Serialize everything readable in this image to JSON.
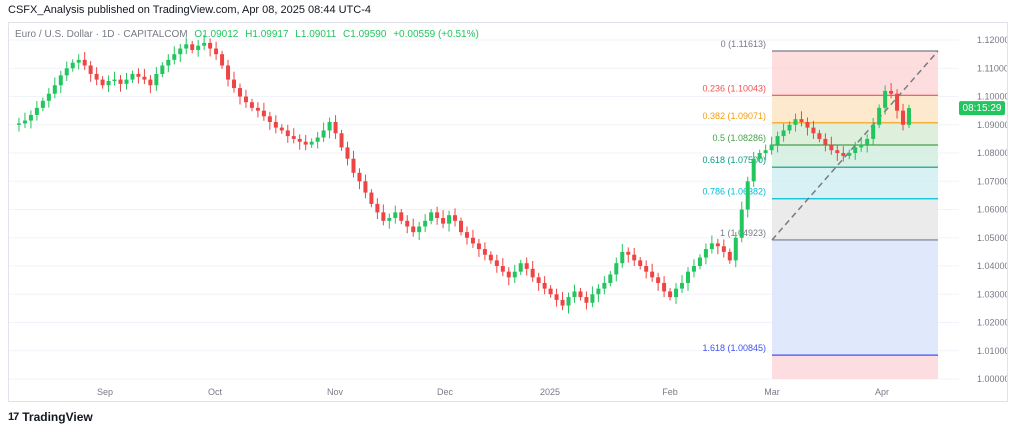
{
  "header": {
    "publisher": "CSFX_Analysis published on TradingView.com, Apr 08, 2025 08:44 UTC-4"
  },
  "footer": {
    "brand": "TradingView",
    "logo_glyph": "17"
  },
  "colors": {
    "up": "#22c55e",
    "down": "#ef4444",
    "grid": "#f0f3fa",
    "axis_text": "#787b86",
    "price_tag": "#22c55e"
  },
  "chart_data": {
    "type": "candlestick",
    "symbol_line": {
      "symbol": "Euro / U.S. Dollar · 1D · CAPITALCOM",
      "open": "O1.09012",
      "high": "H1.09917",
      "low": "L1.09011",
      "close": "C1.09590",
      "change": "+0.00559 (+0.51%)"
    },
    "x_labels": [
      "Sep",
      "Oct",
      "Nov",
      "Dec",
      "2025",
      "Feb",
      "Mar",
      "Apr"
    ],
    "y_ticks": [
      "1.12000",
      "1.11000",
      "1.10000",
      "1.09000",
      "1.08000",
      "1.07000",
      "1.06000",
      "1.05000",
      "1.04000",
      "1.03000",
      "1.02000",
      "1.01000",
      "1.00000"
    ],
    "y_tick_values": [
      1.12,
      1.11,
      1.1,
      1.09,
      1.08,
      1.07,
      1.06,
      1.05,
      1.04,
      1.03,
      1.02,
      1.01,
      1.0
    ],
    "ylim": [
      1.0,
      1.1225
    ],
    "current_price_tag": "08:15:29",
    "current_price": 1.0959,
    "price_path": [
      1.09,
      1.0905,
      1.0915,
      1.0935,
      1.096,
      1.0985,
      1.101,
      1.104,
      1.1075,
      1.11,
      1.112,
      1.113,
      1.111,
      1.108,
      1.106,
      1.104,
      1.1055,
      1.106,
      1.1045,
      1.106,
      1.108,
      1.107,
      1.106,
      1.104,
      1.108,
      1.111,
      1.113,
      1.115,
      1.117,
      1.1185,
      1.1165,
      1.118,
      1.119,
      1.117,
      1.115,
      1.111,
      1.106,
      1.103,
      1.1,
      1.098,
      1.096,
      1.095,
      1.093,
      1.091,
      1.089,
      1.088,
      1.086,
      1.085,
      1.084,
      1.083,
      1.084,
      1.0855,
      1.088,
      1.091,
      1.087,
      1.082,
      1.078,
      1.073,
      1.07,
      1.066,
      1.062,
      1.059,
      1.056,
      1.057,
      1.059,
      1.056,
      1.054,
      1.052,
      1.054,
      1.056,
      1.059,
      1.057,
      1.055,
      1.058,
      1.056,
      1.052,
      1.05,
      1.048,
      1.046,
      1.044,
      1.042,
      1.04,
      1.038,
      1.036,
      1.038,
      1.041,
      1.039,
      1.036,
      1.034,
      1.032,
      1.03,
      1.028,
      1.026,
      1.029,
      1.031,
      1.029,
      1.027,
      1.03,
      1.032,
      1.034,
      1.037,
      1.041,
      1.045,
      1.044,
      1.042,
      1.04,
      1.038,
      1.036,
      1.034,
      1.031,
      1.029,
      1.032,
      1.034,
      1.038,
      1.04,
      1.043,
      1.046,
      1.048,
      1.047,
      1.045,
      1.042,
      1.05,
      1.06,
      1.07,
      1.078,
      1.08,
      1.081,
      1.083,
      1.086,
      1.088,
      1.09,
      1.092,
      1.091,
      1.089,
      1.087,
      1.085,
      1.083,
      1.081,
      1.08,
      1.079,
      1.08,
      1.082,
      1.083,
      1.085,
      1.09,
      1.096,
      1.102,
      1.101,
      1.095,
      1.09,
      1.0959
    ],
    "fib_levels": [
      {
        "ratio": "0",
        "price": "1.11613",
        "value": 1.11613,
        "line": "#787b86",
        "fill": "#fcd5d5",
        "label": "0 (1.11613)"
      },
      {
        "ratio": "0.236",
        "price": "1.10043",
        "value": 1.10043,
        "line": "#ef5350",
        "fill": "#fde3c2",
        "label": "0.236 (1.10043)"
      },
      {
        "ratio": "0.382",
        "price": "1.09071",
        "value": 1.09071,
        "line": "#f59e0b",
        "fill": "#d6ecd2",
        "label": "0.382 (1.09071)"
      },
      {
        "ratio": "0.5",
        "price": "1.08286",
        "value": 1.08286,
        "line": "#43a047",
        "fill": "#cfeedd",
        "label": "0.5 (1.08286)"
      },
      {
        "ratio": "0.618",
        "price": "1.07500",
        "value": 1.075,
        "line": "#089981",
        "fill": "#cdeef1",
        "label": "0.618 (1.07500)"
      },
      {
        "ratio": "0.786",
        "price": "1.06382",
        "value": 1.06382,
        "line": "#00bcd4",
        "fill": "#e6e6e6",
        "label": "0.786 (1.06382)"
      },
      {
        "ratio": "1",
        "price": "1.04923",
        "value": 1.04923,
        "line": "#787b86",
        "fill": "#d8e4fb",
        "label": "1 (1.04923)"
      },
      {
        "ratio": "1.618",
        "price": "1.00845",
        "value": 1.00845,
        "line": "#3f51f5",
        "fill": "#fbd6d8",
        "label": "1.618 (1.00845)"
      }
    ]
  }
}
